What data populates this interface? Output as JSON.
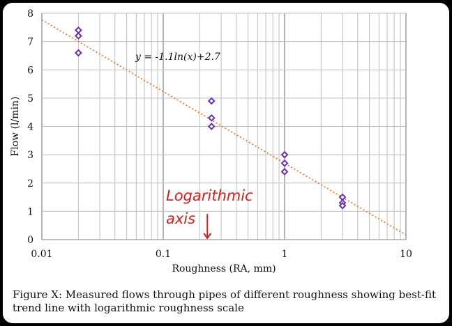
{
  "chart_data": {
    "type": "scatter",
    "xscale": "log",
    "xlim": [
      0.01,
      10
    ],
    "ylim": [
      0,
      8
    ],
    "xticks": [
      0.01,
      0.1,
      1,
      10
    ],
    "xtick_labels": [
      "0.01",
      "0.1",
      "1",
      "10"
    ],
    "yticks": [
      0,
      1,
      2,
      3,
      4,
      5,
      6,
      7,
      8
    ],
    "ytick_labels": [
      "0",
      "1",
      "2",
      "3",
      "4",
      "5",
      "6",
      "7",
      "8"
    ],
    "xlabel": "Roughness (RA, mm)",
    "ylabel": "Flow (l/min)",
    "grid": true,
    "series": [
      {
        "points": [
          {
            "x": 0.02,
            "y": 7.4
          },
          {
            "x": 0.02,
            "y": 7.2
          },
          {
            "x": 0.02,
            "y": 6.6
          },
          {
            "x": 0.25,
            "y": 4.9
          },
          {
            "x": 0.25,
            "y": 4.3
          },
          {
            "x": 0.25,
            "y": 4.0
          },
          {
            "x": 1.0,
            "y": 3.0
          },
          {
            "x": 1.0,
            "y": 2.7
          },
          {
            "x": 1.0,
            "y": 2.4
          },
          {
            "x": 3.0,
            "y": 1.5
          },
          {
            "x": 3.0,
            "y": 1.3
          },
          {
            "x": 3.0,
            "y": 1.2
          }
        ]
      }
    ],
    "trendline": {
      "equation": "y = -1.1ln(x)+2.7",
      "slope": -1.1,
      "intercept": 2.7
    },
    "annotation": {
      "text_line1": "Logarithmic",
      "text_line2": "axis",
      "points_to_x": 0.25
    }
  },
  "caption": "Figure X: Measured flows through pipes of different roughness showing best-fit trend line with logarithmic roughness scale",
  "colors": {
    "marker": "#6a2fb5",
    "trendline": "#e8864a",
    "annotation": "#d42020",
    "grid": "#bfbfbf"
  }
}
